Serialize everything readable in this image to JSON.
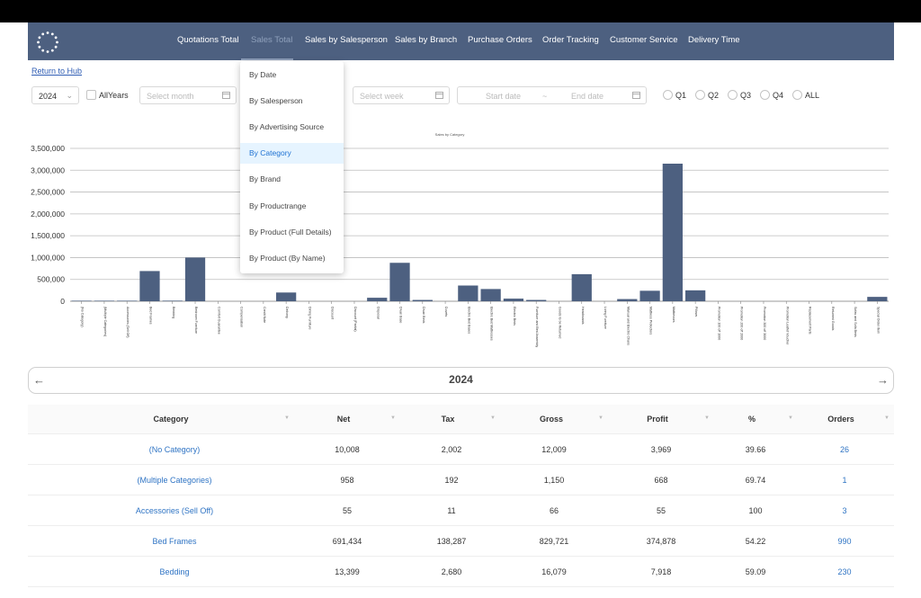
{
  "nav": {
    "items": [
      "Quotations Total",
      "Sales Total",
      "Sales by Salesperson",
      "Sales by Branch",
      "Purchase Orders",
      "Order Tracking",
      "Customer Service",
      "Delivery Time"
    ],
    "active_index": 1
  },
  "return_link": "Return to Hub",
  "filters": {
    "year": "2024",
    "all_years_label": "AllYears",
    "month_placeholder": "Select month",
    "week_placeholder": "Select week",
    "start_placeholder": "Start date",
    "range_separator": "~",
    "end_placeholder": "End date",
    "quarters": [
      "Q1",
      "Q2",
      "Q3",
      "Q4",
      "ALL"
    ]
  },
  "dropdown": {
    "items": [
      "By Date",
      "By Salesperson",
      "By Advertising Source",
      "By Category",
      "By Brand",
      "By Productrange",
      "By Product (Full Details)",
      "By Product (By Name)"
    ],
    "selected_index": 3
  },
  "chart_data": {
    "type": "bar",
    "title": "Sales by Category",
    "ylim": [
      0,
      3500000
    ],
    "yticks": [
      "0",
      "500,000",
      "1,000,000",
      "1,500,000",
      "2,000,000",
      "2,500,000",
      "3,000,000",
      "3,500,000"
    ],
    "categories": [
      "(No Category)",
      "(Multiple Categories)",
      "Accessories (Sell Off)",
      "Bed Frames",
      "Bedding",
      "Bedroom Furniture",
      "Comfort Guarantee",
      "Compensation",
      "Credit Note",
      "Delivery",
      "Dining Furniture",
      "Discount",
      "Discount (Partial)",
      "Disposal",
      "Divan Base",
      "Divan Beds",
      "Duvets",
      "Electric Bed Bases",
      "Electric Bed Mattresses",
      "Electric Beds",
      "Furniture and Bed Assembly",
      "Goods to be Returned",
      "Headboards",
      "Living Furniture",
      "Manual and Electric Chairs",
      "Mattress Protectors",
      "Mattresses",
      "Pillows",
      "Promotion 100 off 1000",
      "Promotion 200 off 2000",
      "Promotion 300 off 3000",
      "Promotion Leaflet Voucher",
      "Replacement Parts",
      "Returned Goods",
      "Sofas and Sofa Beds",
      "Special Order Item"
    ],
    "values": [
      10008,
      958,
      55,
      691434,
      13399,
      1000000,
      0,
      0,
      0,
      200000,
      0,
      0,
      0,
      80000,
      880000,
      30000,
      0,
      360000,
      280000,
      60000,
      30000,
      0,
      620000,
      0,
      50000,
      240000,
      3150000,
      250000,
      0,
      0,
      0,
      0,
      0,
      0,
      0,
      100000
    ],
    "bar_color": "#4d6080",
    "grid": true
  },
  "year_nav": {
    "year": "2024",
    "prev_icon": "arrow-left-icon",
    "next_icon": "arrow-right-icon"
  },
  "table": {
    "headers": [
      "Category",
      "Net",
      "Tax",
      "Gross",
      "Profit",
      "%",
      "Orders"
    ],
    "rows": [
      [
        "(No Category)",
        "10,008",
        "2,002",
        "12,009",
        "3,969",
        "39.66",
        "26"
      ],
      [
        "(Multiple Categories)",
        "958",
        "192",
        "1,150",
        "668",
        "69.74",
        "1"
      ],
      [
        "Accessories (Sell Off)",
        "55",
        "11",
        "66",
        "55",
        "100",
        "3"
      ],
      [
        "Bed Frames",
        "691,434",
        "138,287",
        "829,721",
        "374,878",
        "54.22",
        "990"
      ],
      [
        "Bedding",
        "13,399",
        "2,680",
        "16,079",
        "7,918",
        "59.09",
        "230"
      ]
    ]
  },
  "colors": {
    "nav_bg": "#4d6080",
    "link": "#2f74c4",
    "dropdown_selected_bg": "#e6f4ff"
  }
}
